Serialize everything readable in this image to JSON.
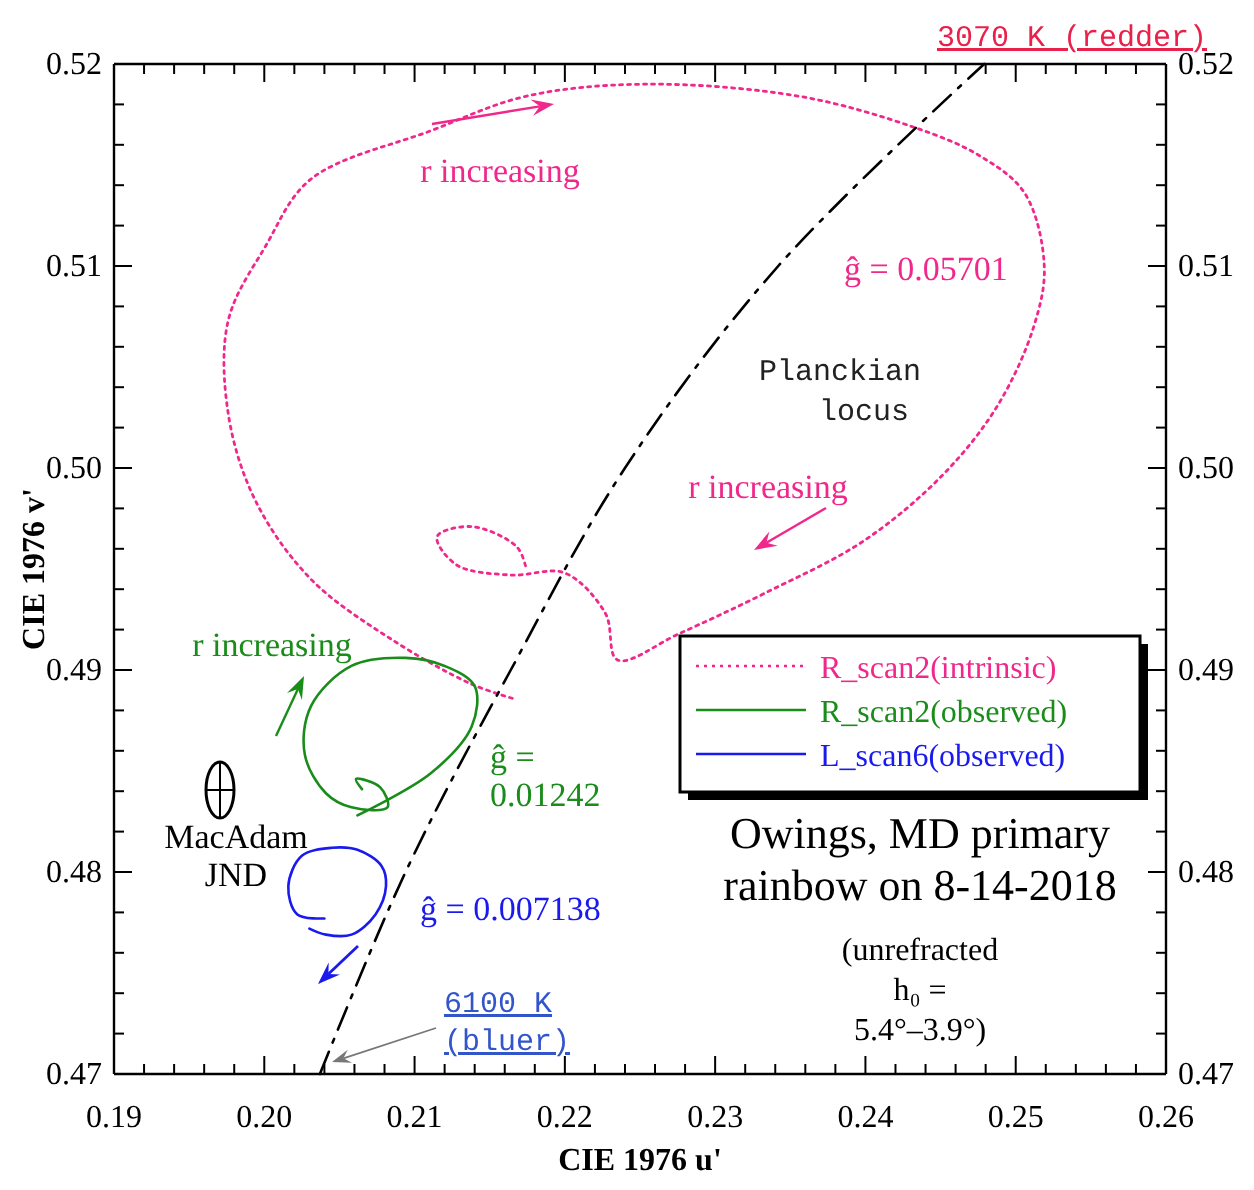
{
  "chart_data": {
    "type": "line",
    "title": "Owings, MD primary rainbow on 8-14-2018",
    "subtitle": "(unrefracted h₀ = 5.4°–3.9°)",
    "xlabel": "CIE 1976 u'",
    "ylabel": "CIE 1976 v'",
    "xlim": [
      0.19,
      0.26
    ],
    "ylim": [
      0.47,
      0.52
    ],
    "y2lim": [
      0.47,
      0.52
    ],
    "xticks": [
      0.19,
      {
        "value": 0.192,
        "label": null
      },
      {
        "value": 0.194,
        "label": null
      },
      {
        "value": 0.196,
        "label": null
      },
      {
        "value": 0.198,
        "label": null
      },
      {
        "value": 0.2,
        "label": "0.20"
      },
      {
        "value": 0.202,
        "label": null
      },
      {
        "value": 0.204,
        "label": null
      },
      {
        "value": 0.206,
        "label": null
      },
      {
        "value": 0.208,
        "label": null
      },
      0.21,
      {
        "value": 0.212,
        "label": null
      },
      {
        "value": 0.214,
        "label": null
      },
      {
        "value": 0.216,
        "label": null
      },
      {
        "value": 0.218,
        "label": null
      },
      0.22,
      {
        "value": 0.222,
        "label": null
      },
      {
        "value": 0.224,
        "label": null
      },
      {
        "value": 0.226,
        "label": null
      },
      {
        "value": 0.228,
        "label": null
      },
      0.23,
      {
        "value": 0.232,
        "label": null
      },
      {
        "value": 0.234,
        "label": null
      },
      {
        "value": 0.236,
        "label": null
      },
      {
        "value": 0.238,
        "label": null
      },
      0.24,
      {
        "value": 0.242,
        "label": null
      },
      {
        "value": 0.244,
        "label": null
      },
      {
        "value": 0.246,
        "label": null
      },
      {
        "value": 0.248,
        "label": null
      },
      0.25,
      {
        "value": 0.252,
        "label": null
      },
      {
        "value": 0.254,
        "label": null
      },
      {
        "value": 0.256,
        "label": null
      },
      {
        "value": 0.258,
        "label": null
      },
      0.26
    ],
    "yticks": [
      0.47,
      {
        "value": 0.472,
        "label": null
      },
      {
        "value": 0.474,
        "label": null
      },
      {
        "value": 0.476,
        "label": null
      },
      {
        "value": 0.478,
        "label": null
      },
      0.48,
      {
        "value": 0.482,
        "label": null
      },
      {
        "value": 0.484,
        "label": null
      },
      {
        "value": 0.486,
        "label": null
      },
      {
        "value": 0.488,
        "label": null
      },
      0.49,
      {
        "value": 0.492,
        "label": null
      },
      {
        "value": 0.494,
        "label": null
      },
      {
        "value": 0.496,
        "label": null
      },
      {
        "value": 0.498,
        "label": null
      },
      {
        "value": 0.5,
        "label": "0.50"
      },
      {
        "value": 0.502,
        "label": null
      },
      {
        "value": 0.504,
        "label": null
      },
      {
        "value": 0.506,
        "label": null
      },
      {
        "value": 0.508,
        "label": null
      },
      0.51,
      {
        "value": 0.512,
        "label": null
      },
      {
        "value": 0.514,
        "label": null
      },
      {
        "value": 0.516,
        "label": null
      },
      {
        "value": 0.518,
        "label": null
      },
      0.52
    ],
    "y2ticks": [
      0.47,
      {
        "value": 0.472,
        "label": null
      },
      {
        "value": 0.474,
        "label": null
      },
      {
        "value": 0.476,
        "label": null
      },
      {
        "value": 0.478,
        "label": null
      },
      0.48,
      {
        "value": 0.482,
        "label": null
      },
      {
        "value": 0.484,
        "label": null
      },
      {
        "value": 0.486,
        "label": null
      },
      {
        "value": 0.488,
        "label": null
      },
      0.49,
      {
        "value": 0.492,
        "label": null
      },
      {
        "value": 0.494,
        "label": null
      },
      {
        "value": 0.496,
        "label": null
      },
      {
        "value": 0.498,
        "label": null
      },
      {
        "value": 0.5,
        "label": "0.50"
      },
      {
        "value": 0.502,
        "label": null
      },
      {
        "value": 0.504,
        "label": null
      },
      {
        "value": 0.506,
        "label": null
      },
      {
        "value": 0.508,
        "label": null
      },
      0.51,
      {
        "value": 0.512,
        "label": null
      },
      {
        "value": 0.514,
        "label": null
      },
      {
        "value": 0.516,
        "label": null
      },
      {
        "value": 0.518,
        "label": null
      },
      0.52
    ],
    "legend": "right",
    "grid": false,
    "series": [
      {
        "name": "R_scan2(intrinsic)",
        "color": "#f0288c",
        "line_style": "dotted",
        "x": [
          0.2165,
          0.2138,
          0.2085,
          0.2031,
          0.1994,
          0.1976,
          0.1976,
          0.2001,
          0.2031,
          0.2111,
          0.2174,
          0.2253,
          0.2356,
          0.2431,
          0.2475,
          0.2506,
          0.2519,
          0.2512,
          0.2488,
          0.2452,
          0.2399,
          0.2333,
          0.2276,
          0.2235,
          0.2227,
          0.22,
          0.2164,
          0.2128,
          0.2115,
          0.2138,
          0.2168,
          0.2174
        ],
        "values": [
          0.4886,
          0.4893,
          0.4915,
          0.4945,
          0.4984,
          0.5027,
          0.5073,
          0.511,
          0.5143,
          0.5167,
          0.5184,
          0.519,
          0.5184,
          0.5169,
          0.5155,
          0.5136,
          0.51,
          0.507,
          0.5031,
          0.4997,
          0.4964,
          0.4938,
          0.4918,
          0.4905,
          0.4928,
          0.4948,
          0.4947,
          0.4952,
          0.4966,
          0.4971,
          0.4961,
          0.4951
        ]
      },
      {
        "name": "R_scan2(observed)",
        "color": "#1a8c1a",
        "line_style": "solid",
        "x": [
          0.2062,
          0.2111,
          0.2138,
          0.214,
          0.212,
          0.2094,
          0.2058,
          0.2031,
          0.2027,
          0.2041,
          0.2058,
          0.2082,
          0.2077,
          0.2061,
          0.2065
        ],
        "values": [
          0.4828,
          0.4849,
          0.4872,
          0.4892,
          0.4902,
          0.4906,
          0.4902,
          0.4882,
          0.4858,
          0.4839,
          0.4832,
          0.4832,
          0.4842,
          0.4846,
          0.4841
        ]
      },
      {
        "name": "L_scan6(observed)",
        "color": "#1a1aee",
        "line_style": "solid",
        "x": [
          0.204,
          0.2022,
          0.2016,
          0.2025,
          0.2045,
          0.2062,
          0.2078,
          0.2081,
          0.2074,
          0.2058,
          0.2041,
          0.203
        ],
        "values": [
          0.4777,
          0.4779,
          0.4793,
          0.4808,
          0.4812,
          0.4811,
          0.4803,
          0.4793,
          0.4779,
          0.4769,
          0.4769,
          0.4772
        ]
      },
      {
        "name": "Planckian locus",
        "color": "#000000",
        "line_style": "dashed",
        "x": [
          0.2037,
          0.2094,
          0.2164,
          0.224,
          0.2342,
          0.2479
        ],
        "values": [
          0.47,
          0.48,
          0.49,
          0.5,
          0.51,
          0.52
        ]
      }
    ],
    "annotations": [
      "r increasing",
      "ĝ = 0.05701",
      "r increasing",
      "r increasing",
      "ĝ = 0.01242",
      "ĝ = 0.007138",
      "MacAdam JND",
      "3070 K (redder)",
      "6100 K (bluer)"
    ]
  }
}
